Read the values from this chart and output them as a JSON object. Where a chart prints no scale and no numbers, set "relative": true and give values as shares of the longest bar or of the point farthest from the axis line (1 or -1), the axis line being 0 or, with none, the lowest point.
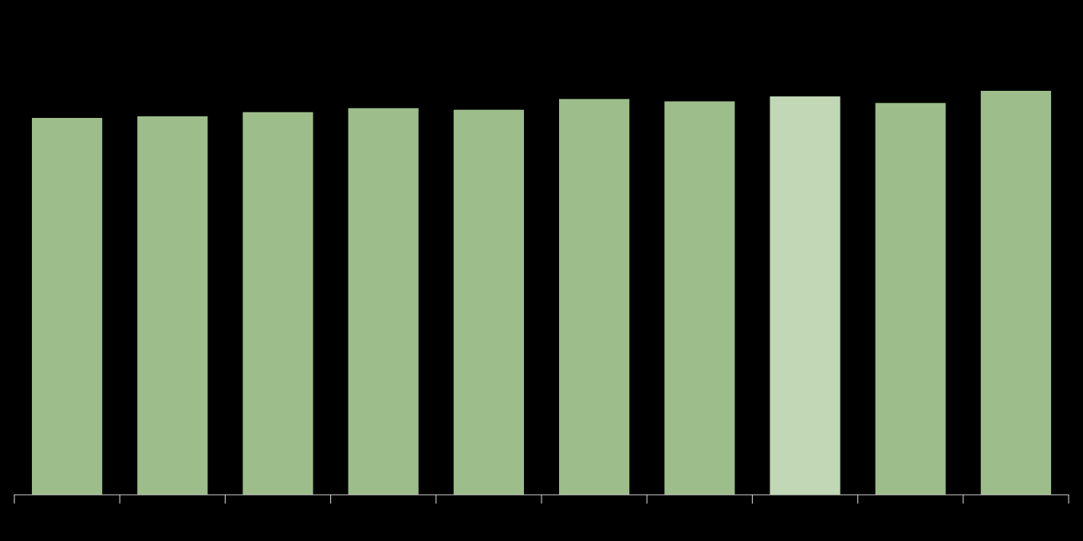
{
  "chart_data": {
    "type": "bar",
    "relative": true,
    "categories": [
      null,
      null,
      null,
      null,
      null,
      null,
      null,
      null,
      null,
      null
    ],
    "values": [
      0.933,
      0.937,
      0.947,
      0.957,
      0.953,
      0.98,
      0.974,
      0.986,
      0.97,
      1.0
    ],
    "colors": [
      "#9dbd8a",
      "#9dbd8a",
      "#9dbd8a",
      "#9dbd8a",
      "#9dbd8a",
      "#9dbd8a",
      "#9dbd8a",
      "#c1d7b5",
      "#9dbd8a",
      "#9dbd8a"
    ],
    "grid": false,
    "legend": false
  }
}
